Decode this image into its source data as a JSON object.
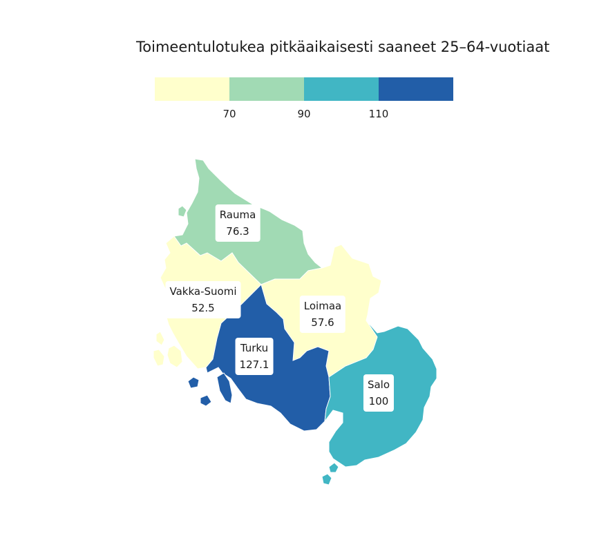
{
  "title": "Toimeentulotukea pitkäaikaisesti saaneet 25–64-vuotiaat",
  "legend": {
    "colors": [
      "#ffffcc",
      "#a1dab4",
      "#41b6c4",
      "#225ea8"
    ],
    "ticks": [
      "70",
      "90",
      "110"
    ]
  },
  "regions": [
    {
      "name": "Rauma",
      "value": "76.3",
      "color": "#a1dab4"
    },
    {
      "name": "Vakka-Suomi",
      "value": "52.5",
      "color": "#ffffcc"
    },
    {
      "name": "Loimaa",
      "value": "57.6",
      "color": "#ffffcc"
    },
    {
      "name": "Turku",
      "value": "127.1",
      "color": "#225ea8"
    },
    {
      "name": "Salo",
      "value": "100",
      "color": "#41b6c4"
    }
  ]
}
